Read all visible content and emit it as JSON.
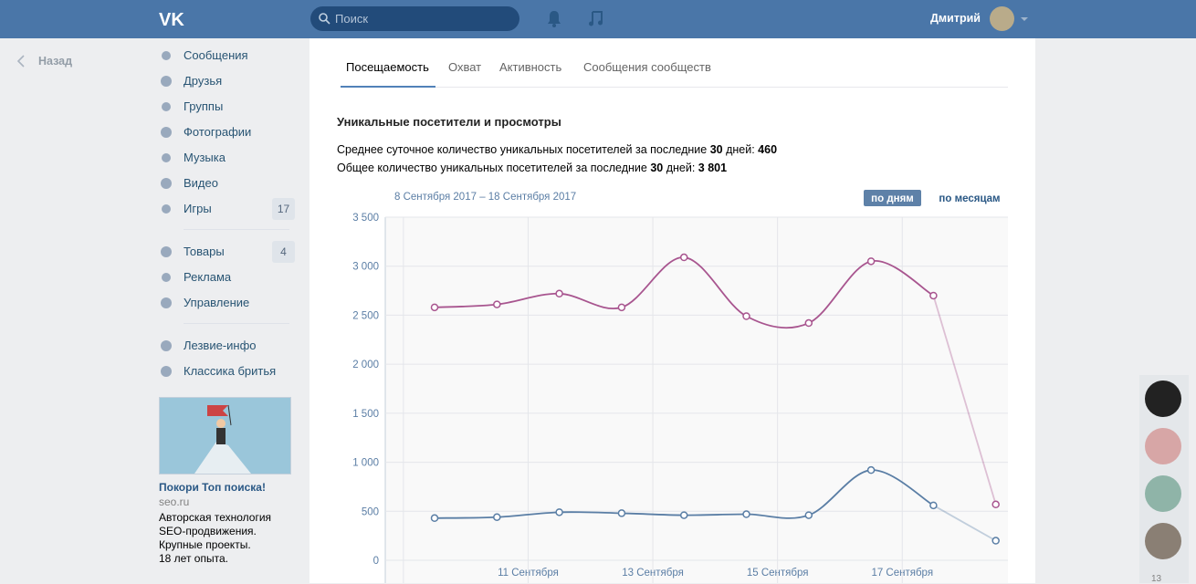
{
  "header": {
    "search_placeholder": "Поиск",
    "user_name": "Дмитрий"
  },
  "back": "Назад",
  "menu": [
    {
      "label": "Сообщения"
    },
    {
      "label": "Друзья"
    },
    {
      "label": "Группы"
    },
    {
      "label": "Фотографии"
    },
    {
      "label": "Музыка"
    },
    {
      "label": "Видео"
    },
    {
      "label": "Игры",
      "badge": "17"
    }
  ],
  "menu2": [
    {
      "label": "Товары",
      "badge": "4"
    },
    {
      "label": "Реклама"
    },
    {
      "label": "Управление"
    }
  ],
  "groups": [
    "Лезвие-инфо",
    "Классика бритья"
  ],
  "ad": {
    "title": "Покори Топ поиска!",
    "domain": "seo.ru",
    "lines": [
      "Авторская технология",
      "SEO-продвижения.",
      "Крупные проекты.",
      "18 лет опыта."
    ]
  },
  "tabs": [
    "Посещаемость",
    "Охват",
    "Активность",
    "Сообщения сообществ"
  ],
  "section_title": "Уникальные посетители и просмотры",
  "stats": [
    {
      "text": "Среднее суточное количество уникальных посетителей за последние ",
      "days": "30",
      "unit": " дней: ",
      "value": "460"
    },
    {
      "text": "Общее количество уникальных посетителей за последние ",
      "days": "30",
      "unit": " дней: ",
      "value": "3 801"
    }
  ],
  "online_count": "13",
  "chart_data": {
    "type": "line",
    "date_range": "8 Сентября 2017 – 18 Сентября 2017",
    "buttons": [
      "по дням",
      "по месяцам"
    ],
    "categories": [
      null,
      null,
      null,
      null,
      null,
      null,
      null,
      null,
      null,
      null
    ],
    "x_labels": [
      "11 Сентября",
      "13 Сентября",
      "15 Сентября",
      "17 Сентября"
    ],
    "series": [
      {
        "color": "#a8558f",
        "values": [
          2580,
          2610,
          2720,
          2580,
          3090,
          2490,
          2420,
          3050,
          2700,
          570
        ]
      },
      {
        "color": "#5a7ea5",
        "values": [
          430,
          440,
          490,
          480,
          460,
          470,
          460,
          920,
          560,
          200
        ]
      }
    ],
    "ylim": [
      0,
      3500
    ],
    "yticks": [
      {
        "value": 0,
        "label": "0"
      },
      {
        "value": 500,
        "label": "500"
      },
      {
        "value": 1000,
        "label": "1 000"
      },
      {
        "value": 1500,
        "label": "1 500"
      },
      {
        "value": 2000,
        "label": "2 000"
      },
      {
        "value": 2500,
        "label": "2 500"
      },
      {
        "value": 3000,
        "label": "3 000"
      },
      {
        "value": 3500,
        "label": "3 500"
      }
    ],
    "grid": true
  }
}
